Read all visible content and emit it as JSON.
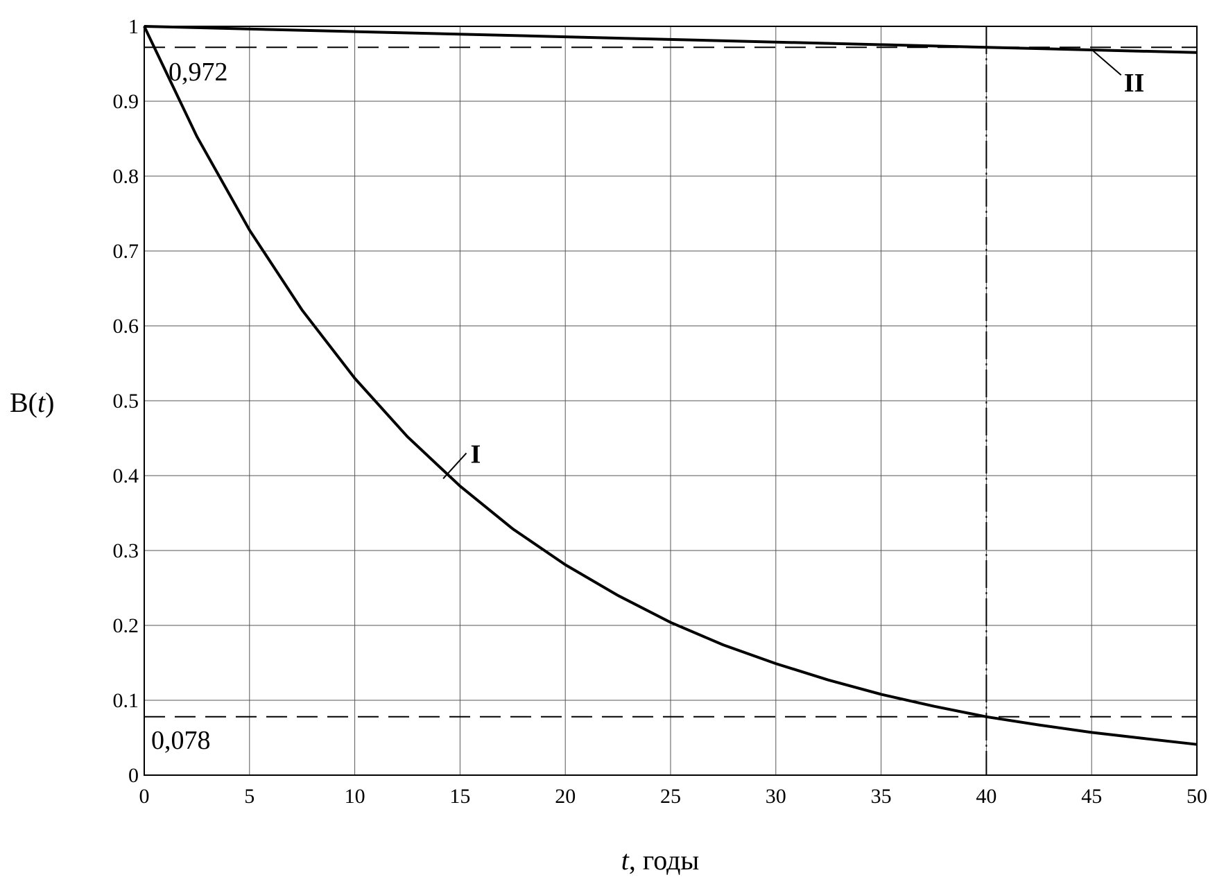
{
  "chart_data": {
    "type": "line",
    "xlabel": {
      "var": "t",
      "rest": ", годы"
    },
    "ylabel": {
      "pre": "B(",
      "var": "t",
      "post": ")"
    },
    "xlim": [
      0,
      50
    ],
    "ylim": [
      0,
      1
    ],
    "x_ticks": [
      "0",
      "5",
      "10",
      "15",
      "20",
      "25",
      "30",
      "35",
      "40",
      "45",
      "50"
    ],
    "x_tick_values": [
      0,
      5,
      10,
      15,
      20,
      25,
      30,
      35,
      40,
      45,
      50
    ],
    "y_ticks": [
      "0",
      "0.1",
      "0.2",
      "0.3",
      "0.4",
      "0.5",
      "0.6",
      "0.7",
      "0.8",
      "0.9",
      "1"
    ],
    "y_tick_values": [
      0,
      0.1,
      0.2,
      0.3,
      0.4,
      0.5,
      0.6,
      0.7,
      0.8,
      0.9,
      1
    ],
    "grid": true,
    "series": [
      {
        "name": "I",
        "x": [
          0,
          2.5,
          5,
          7.5,
          10,
          12.5,
          15,
          17.5,
          20,
          22.5,
          25,
          27.5,
          30,
          32.5,
          35,
          37.5,
          40,
          42.5,
          45,
          47.5,
          50
        ],
        "y": [
          1.0,
          0.853,
          0.728,
          0.621,
          0.53,
          0.452,
          0.386,
          0.329,
          0.281,
          0.24,
          0.204,
          0.174,
          0.149,
          0.127,
          0.108,
          0.092,
          0.078,
          0.067,
          0.057,
          0.049,
          0.041
        ]
      },
      {
        "name": "II",
        "x": [
          0,
          10,
          20,
          30,
          40,
          50
        ],
        "y": [
          1.0,
          0.993,
          0.986,
          0.979,
          0.972,
          0.965
        ]
      }
    ],
    "reference_lines": [
      {
        "orientation": "horizontal",
        "value": 0.972,
        "label": "0,972",
        "style": "dashed"
      },
      {
        "orientation": "horizontal",
        "value": 0.078,
        "label": "0,078",
        "style": "dashed"
      },
      {
        "orientation": "vertical",
        "value": 40,
        "style": "dash-dot"
      }
    ]
  }
}
